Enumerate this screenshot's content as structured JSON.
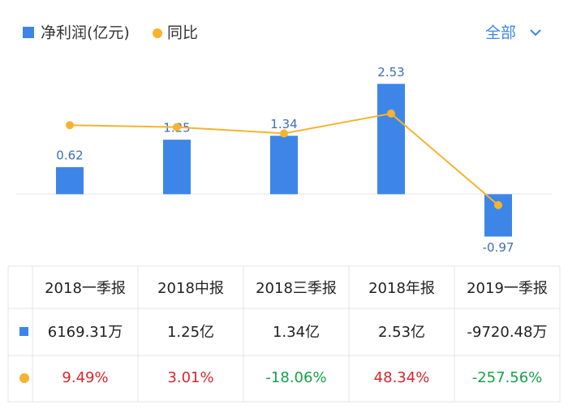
{
  "chart_data": {
    "type": "bar_line",
    "categories": [
      "2018一季报",
      "2018中报",
      "2018三季报",
      "2018年报",
      "2019一季报"
    ],
    "series": [
      {
        "name": "净利润(亿元)",
        "color": "#3d86e8",
        "values": [
          0.62,
          1.25,
          1.34,
          2.53,
          -0.97
        ]
      },
      {
        "name": "同比",
        "color": "#f5b330",
        "axis": "y2",
        "values": [
          9.49,
          3.01,
          -18.06,
          48.34,
          -257.56
        ],
        "value_labels": [
          "9.49%",
          "3.01%",
          "-18.06%",
          "48.34%",
          "-257.56%"
        ]
      }
    ],
    "ylim": [
      -1.5,
      3.15
    ],
    "y2lim": [
      -440,
      238
    ]
  },
  "table": {
    "rows": [
      [
        "6169.31万",
        "1.25亿",
        "1.34亿",
        "2.53亿",
        "-9720.48万"
      ]
    ]
  },
  "controls": {
    "period": "全部"
  }
}
